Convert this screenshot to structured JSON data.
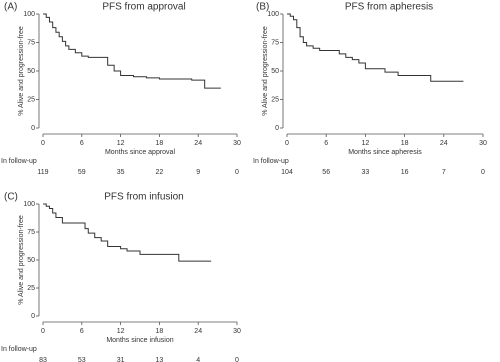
{
  "chart_data": [
    {
      "type": "line",
      "panel": "(A)",
      "title": "PFS from approval",
      "ylabel": "% Alive and progression-free",
      "xlabel": "Months since approval",
      "color": "#333333",
      "xlim": [
        0,
        30
      ],
      "xticks": [
        0,
        6,
        12,
        18,
        24,
        30
      ],
      "ylim": [
        0,
        100
      ],
      "yticks": [
        0,
        25,
        50,
        75,
        100
      ],
      "x": [
        0,
        0.5,
        0.5,
        1,
        1,
        1.5,
        1.5,
        2,
        2,
        2.5,
        2.5,
        3,
        3,
        3.5,
        3.5,
        4,
        4,
        5,
        5,
        6,
        6,
        7,
        7,
        10,
        10,
        11,
        11,
        12,
        12,
        14,
        14,
        16,
        16,
        18,
        18,
        23,
        23,
        25,
        25,
        27.5
      ],
      "values": [
        100,
        100,
        97,
        97,
        93,
        93,
        88,
        88,
        84,
        84,
        80,
        80,
        76,
        76,
        72,
        72,
        69,
        69,
        66,
        66,
        63,
        63,
        62,
        62,
        55,
        55,
        50,
        50,
        46,
        46,
        45,
        45,
        44,
        44,
        43,
        43,
        42,
        42,
        35,
        35
      ],
      "at_risk_label": "In follow-up",
      "at_risk": [
        119,
        59,
        35,
        22,
        9,
        0
      ]
    },
    {
      "type": "line",
      "panel": "(B)",
      "title": "PFS from apheresis",
      "ylabel": "% Alive and progression-free",
      "xlabel": "Months since apheresis",
      "color": "#333333",
      "xlim": [
        0,
        30
      ],
      "xticks": [
        0,
        6,
        12,
        18,
        24,
        30
      ],
      "ylim": [
        0,
        100
      ],
      "yticks": [
        0,
        25,
        50,
        75,
        100
      ],
      "x": [
        0,
        0.5,
        0.5,
        1,
        1,
        1.5,
        1.5,
        2,
        2,
        2.5,
        2.5,
        3,
        3,
        4,
        4,
        5,
        5,
        8,
        8,
        9,
        9,
        10,
        10,
        11,
        11,
        12,
        12,
        15,
        15,
        17,
        17,
        22,
        22,
        27
      ],
      "values": [
        100,
        100,
        98,
        98,
        95,
        95,
        88,
        88,
        80,
        80,
        75,
        75,
        72,
        72,
        70,
        70,
        68,
        68,
        65,
        65,
        62,
        62,
        60,
        60,
        57,
        57,
        52,
        52,
        49,
        49,
        46,
        46,
        41,
        41
      ],
      "at_risk_label": "In follow-up",
      "at_risk": [
        104,
        56,
        33,
        16,
        7,
        0
      ]
    },
    {
      "type": "line",
      "panel": "(C)",
      "title": "PFS from infusion",
      "ylabel": "% Alive and progression-free",
      "xlabel": "Months since infusion",
      "color": "#333333",
      "xlim": [
        0,
        30
      ],
      "xticks": [
        0,
        6,
        12,
        18,
        24,
        30
      ],
      "ylim": [
        0,
        100
      ],
      "yticks": [
        0,
        25,
        50,
        75,
        100
      ],
      "x": [
        0,
        0.5,
        0.5,
        1,
        1,
        1.5,
        1.5,
        2,
        2,
        3,
        3,
        6.5,
        6.5,
        7,
        7,
        8,
        8,
        9,
        9,
        10,
        10,
        12,
        12,
        13,
        13,
        15,
        15,
        21,
        21,
        26
      ],
      "values": [
        100,
        100,
        98,
        98,
        96,
        96,
        92,
        92,
        88,
        88,
        83,
        83,
        78,
        78,
        74,
        74,
        70,
        70,
        67,
        67,
        62,
        62,
        60,
        60,
        58,
        58,
        55,
        55,
        49,
        49
      ],
      "at_risk_label": "In follow-up",
      "at_risk": [
        83,
        53,
        31,
        13,
        4,
        0
      ]
    }
  ]
}
